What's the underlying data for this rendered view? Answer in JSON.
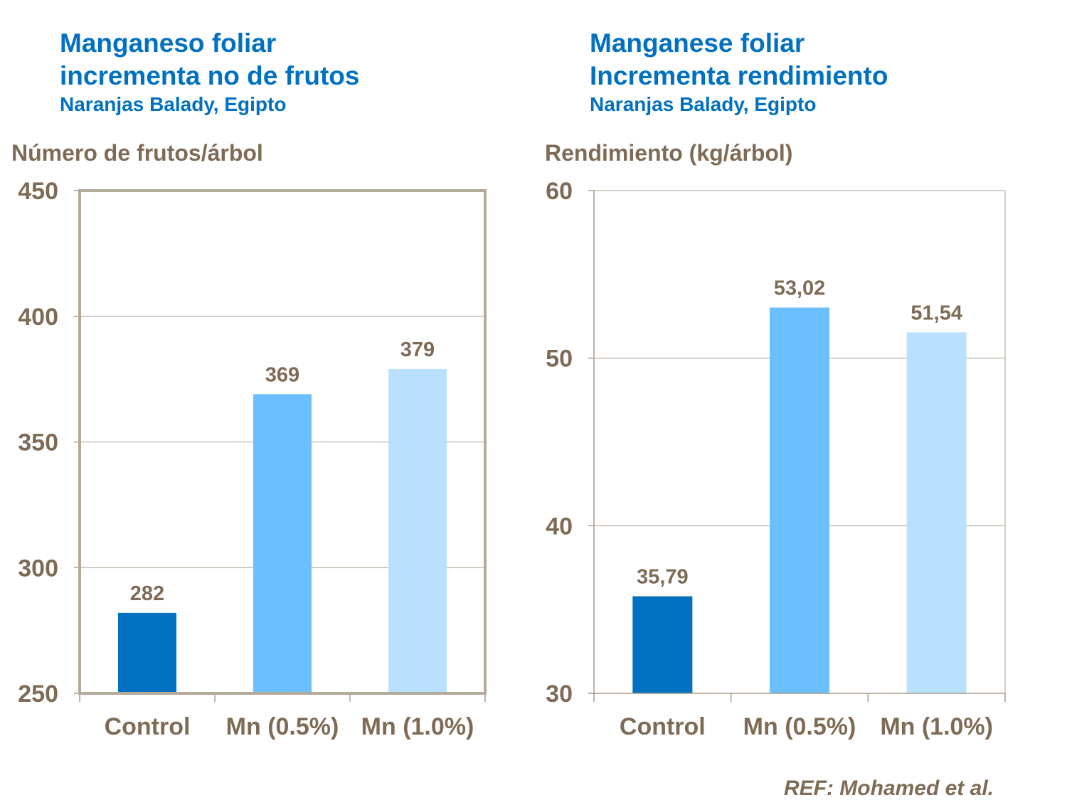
{
  "chart_data": [
    {
      "type": "bar",
      "title": [
        "Manganeso foliar",
        "incrementa no de frutos"
      ],
      "subtitle": "Naranjas  Balady, Egipto",
      "ylabel": "Número de frutos/árbol",
      "categories": [
        "Control",
        "Mn (0.5%)",
        "Mn (1.0%)"
      ],
      "values": [
        282,
        369,
        379
      ],
      "data_labels": [
        "282",
        "369",
        "379"
      ],
      "ylim": [
        250,
        450
      ],
      "yticks": [
        250,
        300,
        350,
        400,
        450
      ],
      "grid": true,
      "colors": [
        "#0070C0",
        "#6BBFFF",
        "#B9E0FF"
      ]
    },
    {
      "type": "bar",
      "title": [
        "Manganese foliar",
        "Incrementa rendimiento"
      ],
      "subtitle": "Naranjas  Balady, Egipto",
      "ylabel": "Rendimiento (kg/árbol)",
      "categories": [
        "Control",
        "Mn (0.5%)",
        "Mn (1.0%)"
      ],
      "values": [
        35.79,
        53.02,
        51.54
      ],
      "data_labels": [
        "35,79",
        "53,02",
        "51,54"
      ],
      "ylim": [
        30,
        60
      ],
      "yticks": [
        30,
        40,
        50,
        60
      ],
      "grid": true,
      "colors": [
        "#0070C0",
        "#6BBFFF",
        "#B9E0FF"
      ]
    }
  ],
  "reference": "REF: Mohamed et al."
}
